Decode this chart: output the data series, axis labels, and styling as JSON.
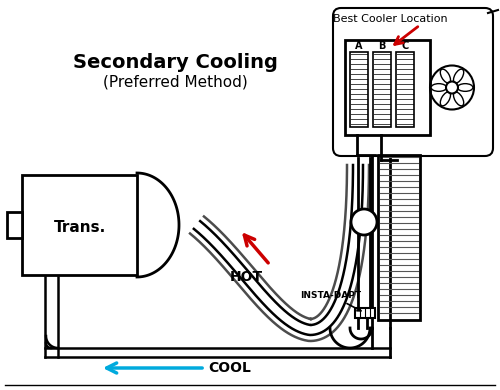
{
  "bg_color": "#ffffff",
  "lc": "#000000",
  "red": "#cc0000",
  "cyan": "#00aadd",
  "title1": "Secondary Cooling",
  "title2": "(Preferred Method)",
  "label_trans": "Trans.",
  "label_hot": "HOT",
  "label_cool": "COOL",
  "label_insta": "INSTA-DAPT",
  "label_best": "Best Cooler Location",
  "abc": [
    "A",
    "B",
    "C"
  ]
}
